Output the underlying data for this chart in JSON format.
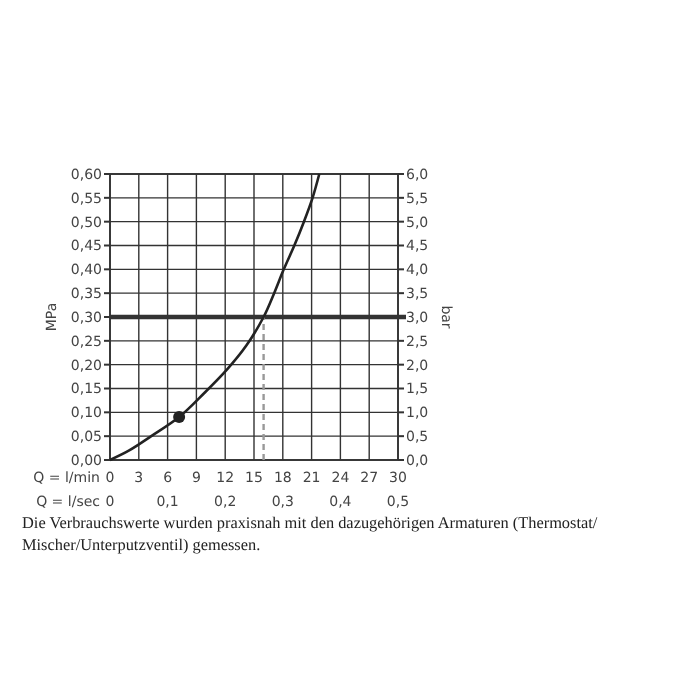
{
  "chart_data": {
    "type": "line",
    "xlabel": "Q = l/min",
    "x2label": "Q = l/sec",
    "ylabel": "MPa",
    "y2label": "bar",
    "xlim": [
      0,
      30
    ],
    "xticks": [
      0,
      3,
      6,
      9,
      12,
      15,
      18,
      21,
      24,
      27,
      30
    ],
    "x2lim": [
      0,
      0.5
    ],
    "x2ticks": [
      {
        "value": 0,
        "label": "0"
      },
      {
        "value": 0.1,
        "label": "0,1"
      },
      {
        "value": 0.2,
        "label": "0,2"
      },
      {
        "value": 0.3,
        "label": "0,3"
      },
      {
        "value": 0.4,
        "label": "0,4"
      },
      {
        "value": 0.5,
        "label": "0,5"
      }
    ],
    "ylim": [
      0,
      0.6
    ],
    "yticks": [
      {
        "value": 0,
        "label": "0,00"
      },
      {
        "value": 0.05,
        "label": "0,05"
      },
      {
        "value": 0.1,
        "label": "0,10"
      },
      {
        "value": 0.15,
        "label": "0,15"
      },
      {
        "value": 0.2,
        "label": "0,20"
      },
      {
        "value": 0.25,
        "label": "0,25"
      },
      {
        "value": 0.3,
        "label": "0,30"
      },
      {
        "value": 0.35,
        "label": "0,35"
      },
      {
        "value": 0.4,
        "label": "0,40"
      },
      {
        "value": 0.45,
        "label": "0,45"
      },
      {
        "value": 0.5,
        "label": "0,50"
      },
      {
        "value": 0.55,
        "label": "0,55"
      },
      {
        "value": 0.6,
        "label": "0,60"
      }
    ],
    "y2lim": [
      0,
      6
    ],
    "y2ticks": [
      {
        "value": 0,
        "label": "0,0"
      },
      {
        "value": 0.5,
        "label": "0,5"
      },
      {
        "value": 1,
        "label": "1,0"
      },
      {
        "value": 1.5,
        "label": "1,5"
      },
      {
        "value": 2,
        "label": "2,0"
      },
      {
        "value": 2.5,
        "label": "2,5"
      },
      {
        "value": 3,
        "label": "3,0"
      },
      {
        "value": 3.5,
        "label": "3,5"
      },
      {
        "value": 4,
        "label": "4,0"
      },
      {
        "value": 4.5,
        "label": "4,5"
      },
      {
        "value": 5,
        "label": "5,0"
      },
      {
        "value": 5.5,
        "label": "5,5"
      },
      {
        "value": 6,
        "label": "6,0"
      }
    ],
    "grid": true,
    "series": [
      {
        "color": "#222222",
        "marker": "none",
        "line_style": "solid",
        "x": [
          0,
          2,
          4.3,
          7.2,
          9.8,
          12.2,
          14.2,
          16,
          17.1,
          18.1,
          19.2,
          20.2,
          21.1,
          21.8
        ],
        "values": [
          0,
          0.02,
          0.05,
          0.09,
          0.14,
          0.19,
          0.24,
          0.3,
          0.35,
          0.4,
          0.45,
          0.5,
          0.55,
          0.6
        ]
      },
      {
        "type": "scatter",
        "color": "#222222",
        "marker": "circle",
        "x": [
          7.2
        ],
        "values": [
          0.09
        ]
      }
    ],
    "ref_lines": [
      {
        "axis": "y",
        "value": 0.3,
        "color": "#333333",
        "line_style": "solid"
      },
      {
        "axis": "x",
        "value": 16,
        "color": "#999999",
        "line_style": "dashed"
      }
    ],
    "annotations": [
      "Die Verbrauchswerte wurden praxisnah mit den dazugehörigen Armaturen (Thermostat/ Mischer/Unterputzventil) gemessen."
    ]
  }
}
